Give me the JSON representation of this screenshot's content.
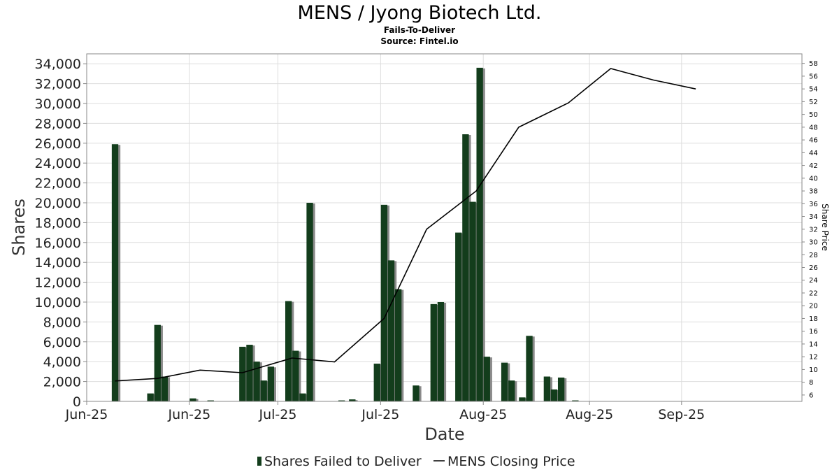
{
  "chart_data": {
    "type": "bar",
    "title": "MENS / Jyong Biotech Ltd.",
    "subtitle": "Fails-To-Deliver",
    "source": "Source: Fintel.io",
    "xlabel": "Date",
    "ylabel": "Shares",
    "y2label": "Share Price",
    "ylim": [
      0,
      35000
    ],
    "y2lim": [
      5,
      59.5
    ],
    "yticks": [
      0,
      2000,
      4000,
      6000,
      8000,
      10000,
      12000,
      14000,
      16000,
      18000,
      20000,
      22000,
      24000,
      26000,
      28000,
      30000,
      32000,
      34000
    ],
    "y2ticks": [
      6,
      8,
      10,
      12,
      14,
      16,
      18,
      20,
      22,
      24,
      26,
      28,
      30,
      32,
      34,
      36,
      38,
      40,
      42,
      44,
      46,
      48,
      50,
      52,
      54,
      56,
      58
    ],
    "xlim": [
      0,
      101
    ],
    "xticks": [
      {
        "label": "Jun-25",
        "x": 0
      },
      {
        "label": "Jun-25",
        "x": 14.5
      },
      {
        "label": "Jul-25",
        "x": 27
      },
      {
        "label": "Jul-25",
        "x": 41.5
      },
      {
        "label": "Aug-25",
        "x": 56
      },
      {
        "label": "Aug-25",
        "x": 71
      },
      {
        "label": "Sep-25",
        "x": 84
      }
    ],
    "grid": true,
    "legend_position": "bottom",
    "series": [
      {
        "name": "Shares Failed to Deliver",
        "type": "bar",
        "color": "#133d1c",
        "shadow_color": "#8a8a8a",
        "points": [
          {
            "x": 4,
            "y": 25900
          },
          {
            "x": 9,
            "y": 800
          },
          {
            "x": 10,
            "y": 7700
          },
          {
            "x": 11,
            "y": 2500
          },
          {
            "x": 15,
            "y": 300
          },
          {
            "x": 17.5,
            "y": 100
          },
          {
            "x": 22,
            "y": 5500
          },
          {
            "x": 23,
            "y": 5700
          },
          {
            "x": 24,
            "y": 4000
          },
          {
            "x": 25,
            "y": 2100
          },
          {
            "x": 26,
            "y": 3500
          },
          {
            "x": 28.5,
            "y": 10100
          },
          {
            "x": 29.5,
            "y": 5100
          },
          {
            "x": 30.5,
            "y": 800
          },
          {
            "x": 31.5,
            "y": 20000
          },
          {
            "x": 36,
            "y": 100
          },
          {
            "x": 37.5,
            "y": 200
          },
          {
            "x": 41,
            "y": 3800
          },
          {
            "x": 42,
            "y": 19800
          },
          {
            "x": 43,
            "y": 14200
          },
          {
            "x": 44,
            "y": 11300
          },
          {
            "x": 46.5,
            "y": 1600
          },
          {
            "x": 49,
            "y": 9800
          },
          {
            "x": 50,
            "y": 10000
          },
          {
            "x": 52.5,
            "y": 17000
          },
          {
            "x": 53.5,
            "y": 26900
          },
          {
            "x": 54.5,
            "y": 20100
          },
          {
            "x": 55.5,
            "y": 33600
          },
          {
            "x": 56.5,
            "y": 4500
          },
          {
            "x": 59,
            "y": 3900
          },
          {
            "x": 60,
            "y": 2100
          },
          {
            "x": 61.5,
            "y": 400
          },
          {
            "x": 62.5,
            "y": 6600
          },
          {
            "x": 65,
            "y": 2500
          },
          {
            "x": 66,
            "y": 1200
          },
          {
            "x": 67,
            "y": 2400
          },
          {
            "x": 69,
            "y": 100
          }
        ]
      },
      {
        "name": "MENS Closing Price",
        "type": "line",
        "color": "#000000",
        "points": [
          {
            "x": 4,
            "y": 8.2
          },
          {
            "x": 10,
            "y": 8.6
          },
          {
            "x": 16,
            "y": 9.9
          },
          {
            "x": 22,
            "y": 9.5
          },
          {
            "x": 29,
            "y": 11.8
          },
          {
            "x": 35,
            "y": 11.2
          },
          {
            "x": 42,
            "y": 18.0
          },
          {
            "x": 48,
            "y": 32.0
          },
          {
            "x": 55,
            "y": 38.0
          },
          {
            "x": 61,
            "y": 48.0
          },
          {
            "x": 68,
            "y": 51.8
          },
          {
            "x": 74,
            "y": 57.2
          },
          {
            "x": 80,
            "y": 55.4
          },
          {
            "x": 86,
            "y": 54.0
          }
        ]
      }
    ]
  }
}
